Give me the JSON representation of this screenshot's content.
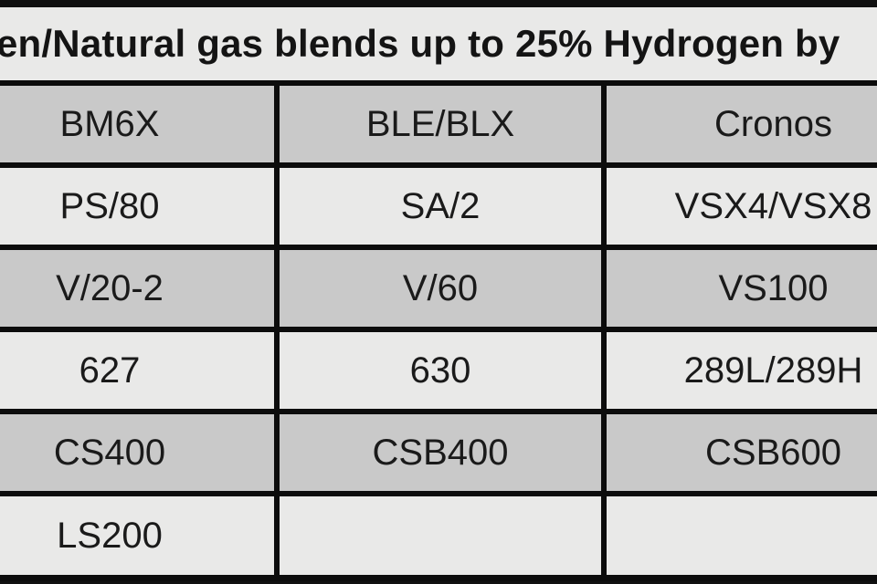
{
  "title": "en/Natural gas blends up to 25% Hydrogen by",
  "table": {
    "columns": [
      "BM6X",
      "BLE/BLX",
      "Cronos"
    ],
    "rows": [
      [
        "PS/80",
        "SA/2",
        "VSX4/VSX8"
      ],
      [
        "V/20-2",
        "V/60",
        "VS100"
      ],
      [
        "627",
        "630",
        "289L/289H"
      ],
      [
        "CS400",
        "CSB400",
        "CSB600"
      ],
      [
        "LS200",
        "",
        ""
      ]
    ]
  },
  "colors": {
    "frame": "#101010",
    "border": "#0c0c0c",
    "title_bg": "#e9e9e8",
    "header_row_bg": "#c9c9c9",
    "light_row_bg": "#e9e9e8",
    "text": "#1a1a1a"
  }
}
